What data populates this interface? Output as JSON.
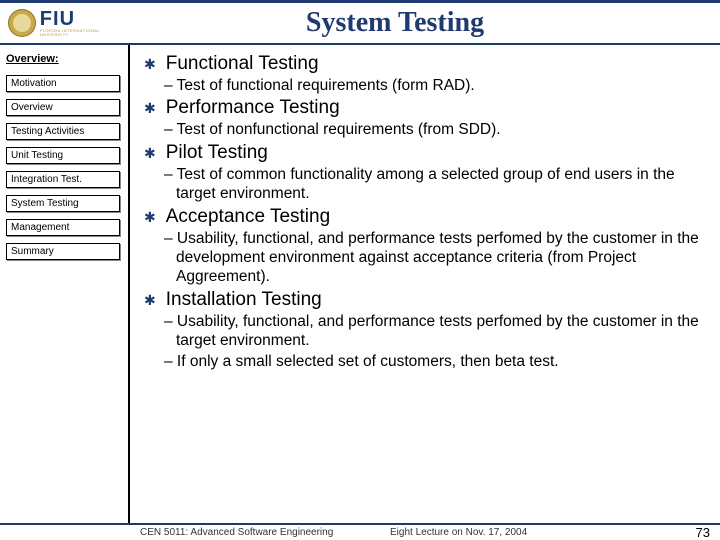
{
  "header": {
    "title": "System Testing",
    "logo_main": "FIU",
    "logo_sub": "FLORIDA INTERNATIONAL UNIVERSITY"
  },
  "sidebar": {
    "title": "Overview:",
    "items": [
      {
        "label": "Motivation"
      },
      {
        "label": "Overview"
      },
      {
        "label": "Testing Activities"
      },
      {
        "label": "Unit Testing"
      },
      {
        "label": "Integration Test."
      },
      {
        "label": "System Testing"
      },
      {
        "label": "Management"
      },
      {
        "label": "Summary"
      }
    ]
  },
  "content": {
    "items": [
      {
        "title": "Functional Testing",
        "subs": [
          "– Test of functional requirements (form RAD)."
        ]
      },
      {
        "title": "Performance Testing",
        "subs": [
          "– Test of nonfunctional requirements (from SDD)."
        ]
      },
      {
        "title": "Pilot Testing",
        "subs": [
          "– Test of common functionality among a selected group of end users in the target environment."
        ]
      },
      {
        "title": "Acceptance Testing",
        "subs": [
          "– Usability, functional, and performance tests perfomed by the customer in the development environment against acceptance criteria (from Project Aggreement)."
        ]
      },
      {
        "title": "Installation Testing",
        "subs": [
          "– Usability, functional, and performance tests perfomed by the customer in the target environment.",
          "– If only a small selected set of customers, then beta test."
        ]
      }
    ]
  },
  "footer": {
    "left": "CEN 5011: Advanced Software Engineering",
    "mid": "Eight Lecture on Nov. 17, 2004",
    "page": "73"
  },
  "colors": {
    "accent": "#1f3a6e",
    "gold": "#c9a84a"
  }
}
